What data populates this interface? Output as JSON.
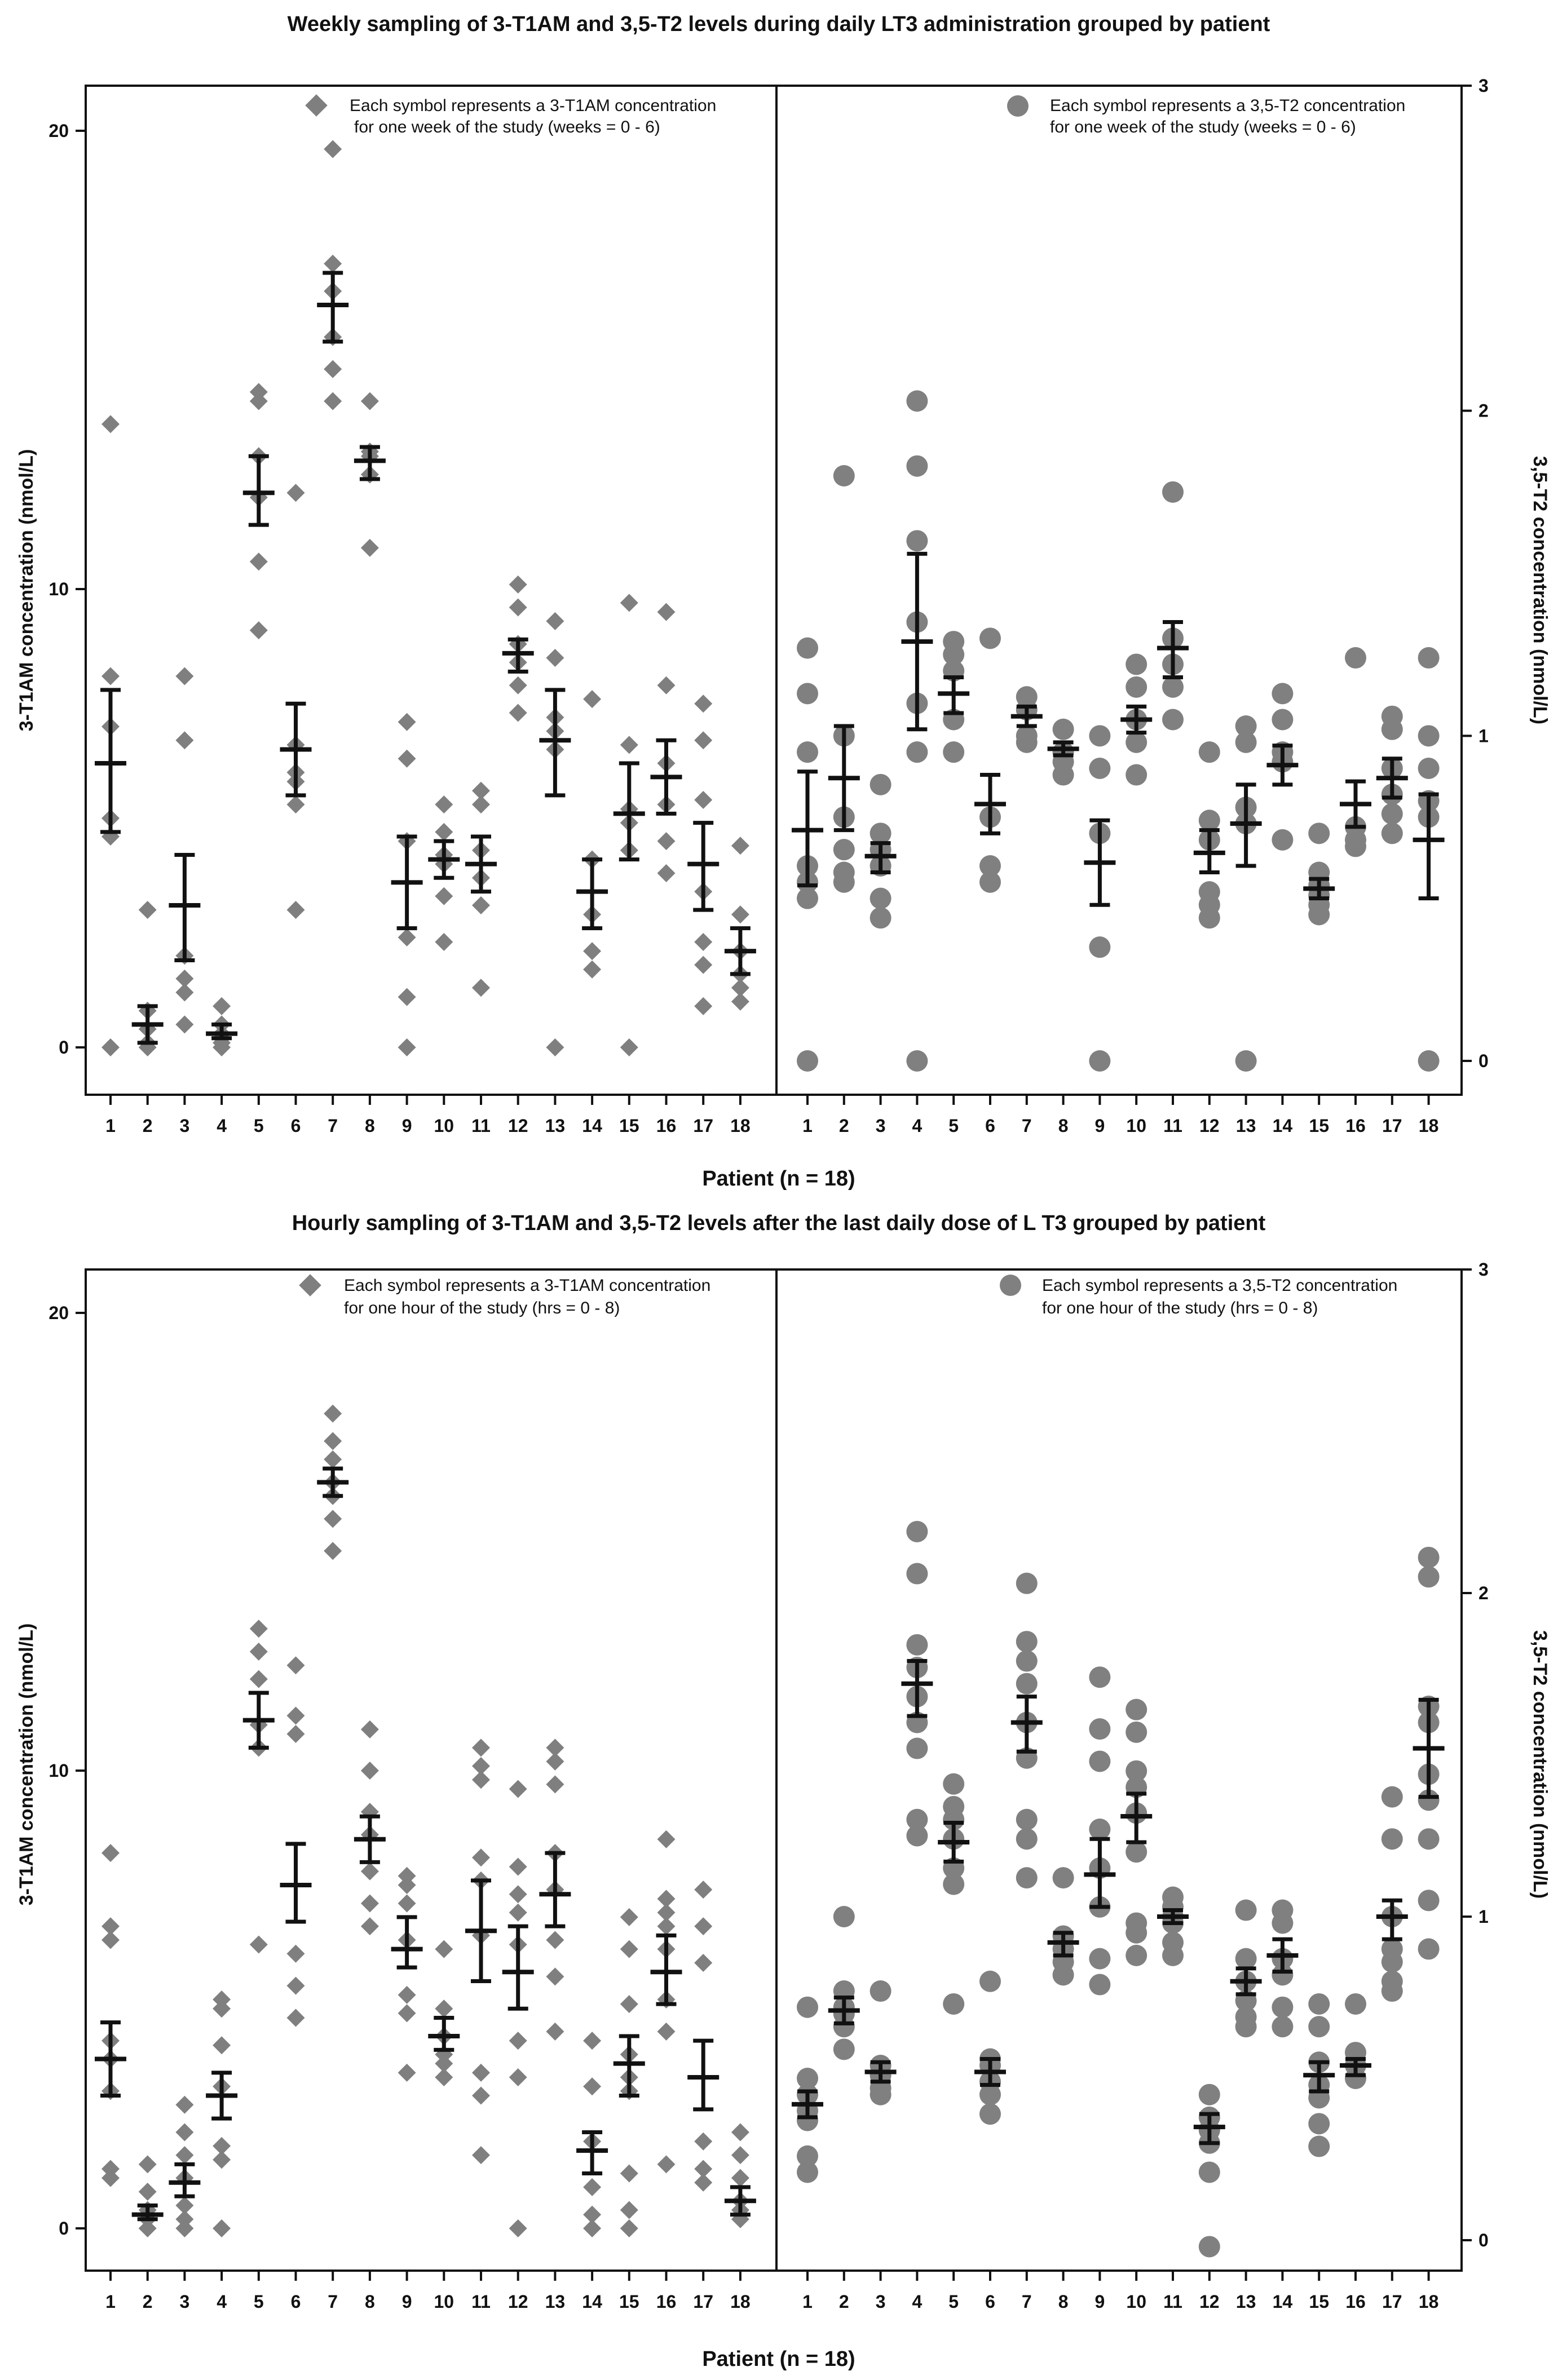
{
  "chart_data": [
    {
      "type": "scatter",
      "title": "Weekly sampling of 3-T1AM and 3,5-T2 levels during daily LT3 administration grouped by patient",
      "xlabel": "Patient (n = 18)",
      "categories": [
        "1",
        "2",
        "3",
        "4",
        "5",
        "6",
        "7",
        "8",
        "9",
        "10",
        "11",
        "12",
        "13",
        "14",
        "15",
        "16",
        "17",
        "18"
      ],
      "left": {
        "name": "3-T1AM",
        "ylabel": "3-T1AM concentration (nmol/L)",
        "ylim": [
          -1.2,
          21.0
        ],
        "ticks": [
          0,
          10,
          20
        ],
        "tick_labels": [
          "0",
          "10",
          "20"
        ],
        "marker": "diamond",
        "color": "#7f7f7f",
        "legend_line1": "Each symbol represents a 3-T1AM concentration",
        "legend_line2": "for one week of the study (weeks = 0 - 6)",
        "points": [
          [
            13.6,
            8.1,
            7.0,
            5.0,
            4.6,
            0.0
          ],
          [
            3.0,
            0.8,
            0.4,
            0.1,
            0.0
          ],
          [
            8.1,
            6.7,
            2.0,
            1.5,
            1.2,
            0.5
          ],
          [
            0.9,
            0.5,
            0.3,
            0.2,
            0.1,
            0.0
          ],
          [
            14.3,
            14.1,
            12.9,
            12.0,
            10.6,
            9.1
          ],
          [
            12.1,
            6.6,
            6.0,
            5.8,
            5.3,
            3.0
          ],
          [
            19.6,
            17.1,
            16.5,
            15.5,
            14.8,
            14.1
          ],
          [
            14.1,
            13.0,
            12.9,
            12.5,
            10.9
          ],
          [
            7.1,
            6.3,
            4.5,
            2.4,
            1.1,
            0.0
          ],
          [
            5.3,
            4.7,
            4.2,
            4.0,
            3.3,
            2.3
          ],
          [
            5.6,
            5.3,
            4.3,
            3.7,
            3.1,
            1.3
          ],
          [
            10.1,
            9.6,
            8.8,
            8.4,
            7.9,
            7.3
          ],
          [
            9.3,
            8.5,
            7.2,
            6.9,
            6.5,
            0.0
          ],
          [
            7.6,
            4.1,
            2.9,
            2.1,
            1.7
          ],
          [
            9.7,
            6.6,
            5.2,
            4.9,
            4.3,
            0.0
          ],
          [
            9.5,
            7.9,
            6.2,
            5.3,
            4.5,
            3.8
          ],
          [
            7.5,
            6.7,
            5.4,
            3.4,
            2.3,
            1.8,
            0.9
          ],
          [
            4.4,
            2.9,
            2.1,
            1.6,
            1.3,
            1.0
          ]
        ],
        "summary": [
          [
            6.2,
            7.8,
            4.7
          ],
          [
            0.5,
            0.9,
            0.1
          ],
          [
            3.1,
            4.2,
            1.9
          ],
          [
            0.3,
            0.5,
            0.2
          ],
          [
            12.1,
            12.9,
            11.4
          ],
          [
            6.5,
            7.5,
            5.5
          ],
          [
            16.2,
            16.9,
            15.4
          ],
          [
            12.8,
            13.1,
            12.4
          ],
          [
            3.6,
            4.6,
            2.6
          ],
          [
            4.1,
            4.5,
            3.7
          ],
          [
            4.0,
            4.6,
            3.4
          ],
          [
            8.6,
            8.9,
            8.2
          ],
          [
            6.7,
            7.8,
            5.5
          ],
          [
            3.4,
            4.1,
            2.6
          ],
          [
            5.1,
            6.2,
            4.1
          ],
          [
            5.9,
            6.7,
            5.1
          ],
          [
            4.0,
            4.9,
            3.0
          ],
          [
            2.1,
            2.6,
            1.6
          ]
        ]
      },
      "right": {
        "name": "3,5-T2",
        "ylabel": "3,5-T2 concentration (nmol/L)",
        "ylim": [
          -0.1,
          3.0
        ],
        "ticks": [
          0,
          1,
          2,
          3
        ],
        "tick_labels": [
          "0",
          "1",
          "2",
          "3"
        ],
        "marker": "circle",
        "color": "#808080",
        "legend_line1": "Each symbol represents a 3,5-T2 concentration",
        "legend_line2": "for one week of the study (weeks = 0 -  6)",
        "points": [
          [
            1.27,
            1.13,
            0.95,
            0.6,
            0.55,
            0.5,
            0.0
          ],
          [
            1.8,
            1.0,
            0.75,
            0.65,
            0.58,
            0.55
          ],
          [
            0.85,
            0.7,
            0.65,
            0.6,
            0.5,
            0.44
          ],
          [
            2.03,
            1.83,
            1.6,
            1.35,
            1.1,
            0.95,
            0.0
          ],
          [
            1.29,
            1.25,
            1.2,
            1.05,
            0.95
          ],
          [
            1.3,
            0.75,
            0.6,
            0.55
          ],
          [
            1.12,
            1.08,
            1.0,
            0.98
          ],
          [
            1.02,
            0.95,
            0.92,
            0.88
          ],
          [
            1.0,
            0.9,
            0.7,
            0.35,
            0.0
          ],
          [
            1.22,
            1.15,
            1.05,
            0.98,
            0.88
          ],
          [
            1.75,
            1.3,
            1.22,
            1.15,
            1.05
          ],
          [
            0.95,
            0.74,
            0.68,
            0.52,
            0.48,
            0.44
          ],
          [
            1.03,
            0.98,
            0.78,
            0.73,
            0.0
          ],
          [
            1.13,
            1.05,
            0.95,
            0.92,
            0.68
          ],
          [
            0.7,
            0.58,
            0.54,
            0.51,
            0.48,
            0.45
          ],
          [
            1.24,
            0.72,
            0.68,
            0.66
          ],
          [
            1.06,
            1.02,
            0.9,
            0.82,
            0.76,
            0.7
          ],
          [
            1.24,
            1.0,
            0.9,
            0.8,
            0.75,
            0.0
          ]
        ],
        "summary": [
          [
            0.71,
            0.89,
            0.54
          ],
          [
            0.87,
            1.03,
            0.71
          ],
          [
            0.63,
            0.67,
            0.58
          ],
          [
            1.29,
            1.56,
            1.02
          ],
          [
            1.13,
            1.18,
            1.07
          ],
          [
            0.79,
            0.88,
            0.7
          ],
          [
            1.06,
            1.09,
            1.03
          ],
          [
            0.96,
            0.98,
            0.94
          ],
          [
            0.61,
            0.74,
            0.48
          ],
          [
            1.05,
            1.09,
            1.01
          ],
          [
            1.27,
            1.35,
            1.18
          ],
          [
            0.64,
            0.71,
            0.58
          ],
          [
            0.73,
            0.85,
            0.6
          ],
          [
            0.91,
            0.97,
            0.85
          ],
          [
            0.53,
            0.56,
            0.5
          ],
          [
            0.79,
            0.86,
            0.72
          ],
          [
            0.87,
            0.93,
            0.81
          ],
          [
            0.68,
            0.82,
            0.5
          ]
        ]
      }
    },
    {
      "type": "scatter",
      "title": "Hourly sampling of 3-T1AM and 3,5-T2 levels after the last daily dose of L  T3 grouped by patient",
      "xlabel": "Patient (n = 18)",
      "categories": [
        "1",
        "2",
        "3",
        "4",
        "5",
        "6",
        "7",
        "8",
        "9",
        "10",
        "11",
        "12",
        "13",
        "14",
        "15",
        "16",
        "17",
        "18"
      ],
      "left": {
        "name": "3-T1AM",
        "ylabel": "3-T1AM concentration (nmol/L)",
        "ylim": [
          -1.2,
          21.0
        ],
        "ticks": [
          0,
          10,
          20
        ],
        "tick_labels": [
          "0",
          "10",
          "20"
        ],
        "marker": "diamond",
        "color": "#7f7f7f",
        "legend_line1": "Each symbol represents a 3-T1AM concentration",
        "legend_line2": "for one hour of the study (hrs = 0 - 8)",
        "points": [
          [
            8.2,
            6.6,
            6.3,
            4.1,
            3.7,
            3.0,
            1.3,
            1.1
          ],
          [
            1.4,
            0.8,
            0.4,
            0.2,
            0.0
          ],
          [
            2.7,
            2.1,
            1.6,
            1.1,
            0.5,
            0.2,
            0.0
          ],
          [
            5.0,
            4.8,
            4.0,
            3.1,
            1.8,
            1.5,
            0.0
          ],
          [
            13.1,
            12.6,
            12.0,
            11.0,
            10.5,
            6.2
          ],
          [
            12.3,
            11.2,
            10.8,
            6.0,
            5.3,
            4.6
          ],
          [
            17.8,
            17.2,
            16.8,
            16.3,
            16.0,
            15.5,
            14.8
          ],
          [
            10.9,
            10.0,
            9.1,
            8.6,
            7.8,
            7.1,
            6.6
          ],
          [
            7.7,
            7.5,
            7.1,
            6.3,
            5.1,
            4.7,
            3.4
          ],
          [
            6.1,
            4.8,
            4.2,
            3.8,
            3.6,
            3.3
          ],
          [
            10.5,
            10.1,
            9.8,
            8.1,
            7.6,
            6.4,
            3.4,
            2.9,
            1.6
          ],
          [
            9.6,
            7.9,
            7.3,
            6.9,
            6.2,
            4.1,
            3.3,
            0.0
          ],
          [
            10.5,
            10.2,
            9.7,
            8.2,
            7.4,
            6.3,
            5.5,
            4.3
          ],
          [
            4.1,
            3.1,
            1.9,
            0.9,
            0.3,
            0.0
          ],
          [
            6.8,
            6.1,
            4.9,
            3.8,
            3.3,
            3.0,
            1.2,
            0.4,
            0.0
          ],
          [
            8.5,
            7.2,
            6.9,
            6.6,
            6.1,
            5.0,
            4.3,
            1.4
          ],
          [
            7.4,
            6.6,
            5.8,
            1.9,
            1.3,
            1.0
          ],
          [
            2.1,
            1.6,
            1.1,
            0.6,
            0.4,
            0.2
          ]
        ],
        "summary": [
          [
            3.7,
            4.5,
            2.9
          ],
          [
            0.3,
            0.5,
            0.2
          ],
          [
            1.0,
            1.4,
            0.7
          ],
          [
            2.9,
            3.4,
            2.4
          ],
          [
            11.1,
            11.7,
            10.5
          ],
          [
            7.5,
            8.4,
            6.7
          ],
          [
            16.3,
            16.6,
            16.0
          ],
          [
            8.5,
            9.0,
            8.0
          ],
          [
            6.1,
            6.8,
            5.7
          ],
          [
            4.2,
            4.6,
            3.9
          ],
          [
            6.5,
            7.6,
            5.4
          ],
          [
            5.6,
            6.6,
            4.8
          ],
          [
            7.3,
            8.2,
            6.6
          ],
          [
            1.7,
            2.1,
            1.2
          ],
          [
            3.6,
            4.2,
            2.9
          ],
          [
            5.6,
            6.4,
            4.9
          ],
          [
            3.3,
            4.1,
            2.6
          ],
          [
            0.6,
            0.9,
            0.3
          ]
        ]
      },
      "right": {
        "name": "3,5-T2",
        "ylabel": "3,5-T2 concentration (nmol/L)",
        "ylim": [
          -0.1,
          3.0
        ],
        "ticks": [
          0,
          1,
          2,
          3
        ],
        "tick_labels": [
          "0",
          "1",
          "2",
          "3"
        ],
        "marker": "circle",
        "color": "#808080",
        "legend_line1": "Each symbol represents a 3,5-T2 concentration",
        "legend_line2": "for one hour of the study (hrs = 0 - 8)",
        "points": [
          [
            0.72,
            0.5,
            0.45,
            0.4,
            0.37,
            0.26,
            0.21
          ],
          [
            1.0,
            0.77,
            0.72,
            0.7,
            0.66,
            0.59
          ],
          [
            0.77,
            0.54,
            0.51,
            0.47,
            0.45
          ],
          [
            2.19,
            2.06,
            1.84,
            1.77,
            1.68,
            1.6,
            1.52,
            1.3,
            1.25
          ],
          [
            1.41,
            1.34,
            1.3,
            1.24,
            1.15,
            1.1,
            0.73
          ],
          [
            0.8,
            0.56,
            0.54,
            0.49,
            0.45,
            0.39
          ],
          [
            2.03,
            1.85,
            1.79,
            1.72,
            1.6,
            1.49,
            1.3,
            1.24,
            1.12
          ],
          [
            1.12,
            0.94,
            0.9,
            0.86,
            0.82
          ],
          [
            1.74,
            1.58,
            1.48,
            1.27,
            1.15,
            1.03,
            0.87,
            0.79
          ],
          [
            1.64,
            1.57,
            1.45,
            1.4,
            1.32,
            1.2,
            0.98,
            0.95,
            0.88
          ],
          [
            1.06,
            1.03,
            1.0,
            0.98,
            0.92,
            0.88
          ],
          [
            0.45,
            0.38,
            0.34,
            0.3,
            0.21,
            -0.02
          ],
          [
            1.02,
            0.87,
            0.8,
            0.74,
            0.69,
            0.66
          ],
          [
            1.02,
            0.98,
            0.87,
            0.82,
            0.72,
            0.66
          ],
          [
            0.73,
            0.66,
            0.55,
            0.48,
            0.44,
            0.36,
            0.29
          ],
          [
            0.73,
            0.58,
            0.54,
            0.5
          ],
          [
            1.37,
            1.24,
            1.0,
            0.9,
            0.86,
            0.8,
            0.77
          ],
          [
            2.11,
            2.05,
            1.65,
            1.6,
            1.44,
            1.36,
            1.24,
            1.05,
            0.9
          ]
        ],
        "summary": [
          [
            0.42,
            0.46,
            0.38
          ],
          [
            0.71,
            0.75,
            0.67
          ],
          [
            0.52,
            0.55,
            0.49
          ],
          [
            1.72,
            1.79,
            1.62
          ],
          [
            1.23,
            1.29,
            1.17
          ],
          [
            0.52,
            0.56,
            0.48
          ],
          [
            1.6,
            1.68,
            1.51
          ],
          [
            0.92,
            0.95,
            0.88
          ],
          [
            1.13,
            1.24,
            1.03
          ],
          [
            1.31,
            1.38,
            1.23
          ],
          [
            1.0,
            1.02,
            0.98
          ],
          [
            0.35,
            0.39,
            0.3
          ],
          [
            0.8,
            0.84,
            0.76
          ],
          [
            0.88,
            0.93,
            0.83
          ],
          [
            0.51,
            0.55,
            0.46
          ],
          [
            0.54,
            0.56,
            0.51
          ],
          [
            1.0,
            1.05,
            0.93
          ],
          [
            1.52,
            1.67,
            1.37
          ]
        ]
      }
    }
  ]
}
